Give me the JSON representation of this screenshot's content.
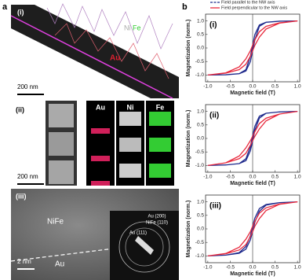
{
  "panel_labels": [
    "a",
    "b"
  ],
  "panel_a": {
    "i": {
      "label": "(i)",
      "ni": "Ni",
      "fe": "Fe",
      "au": "Au",
      "scale": "200 nm"
    },
    "ii": {
      "label": "(ii)",
      "maps": [
        "Au",
        "Ni",
        "Fe"
      ],
      "scale": "200 nm"
    },
    "iii": {
      "label": "(iii)",
      "nife": "NiFe",
      "au": "Au",
      "scale": "2 nm",
      "rings": [
        "Au (200)",
        "NiFe (110)",
        "Au (111)"
      ]
    }
  },
  "chart_data": [
    {
      "type": "line",
      "title": "(i)",
      "x_label": "Magnetic field (T)",
      "y_label": "Magnetization (norm.)",
      "x": [
        -1,
        -0.6,
        -0.3,
        -0.15,
        -0.05,
        0,
        0.05,
        0.15,
        0.3,
        0.6,
        1,
        0.6,
        0.3,
        0.15,
        0.05,
        0,
        -0.05,
        -0.15,
        -0.3,
        -0.6,
        -1
      ],
      "series": [
        {
          "name": "Field parallel to the NW axis",
          "color": "#1f2a8c",
          "values": [
            -1,
            -0.99,
            -0.95,
            -0.85,
            -0.5,
            -0.1,
            0.3,
            0.8,
            0.95,
            0.99,
            1,
            0.99,
            0.95,
            0.85,
            0.5,
            0.1,
            -0.3,
            -0.8,
            -0.95,
            -0.99,
            -1
          ]
        },
        {
          "name": "Field perpendicular to the NW axis",
          "color": "#e8283c",
          "values": [
            -1,
            -0.93,
            -0.8,
            -0.6,
            -0.3,
            -0.1,
            0.1,
            0.4,
            0.7,
            0.92,
            1,
            0.93,
            0.8,
            0.6,
            0.3,
            0.1,
            -0.1,
            -0.4,
            -0.7,
            -0.92,
            -1
          ]
        }
      ],
      "xlim": [
        -1.05,
        1.05
      ],
      "ylim": [
        -1.25,
        1.25
      ],
      "xticks": [
        {
          "value": -1,
          "label": "-1.0"
        },
        {
          "value": -0.5,
          "label": "-0.5"
        },
        {
          "value": 0,
          "label": "0.0"
        },
        {
          "value": 0.5,
          "label": "0.5"
        },
        {
          "value": 1,
          "label": "1.0"
        }
      ],
      "yticks": [
        {
          "value": -1,
          "label": "-1.0"
        },
        {
          "value": -0.5,
          "label": "-0.5"
        },
        {
          "value": 0,
          "label": "0.0"
        },
        {
          "value": 0.5,
          "label": "0.5"
        },
        {
          "value": 1,
          "label": "1.0"
        }
      ],
      "legend": "top"
    },
    {
      "type": "line",
      "title": "(ii)",
      "x_label": "Magnetic field (T)",
      "y_label": "Magnetization (norm.)",
      "x": [
        -1,
        -0.6,
        -0.3,
        -0.15,
        -0.05,
        0,
        0.05,
        0.15,
        0.3,
        0.6,
        1,
        0.6,
        0.3,
        0.15,
        0.05,
        0,
        -0.05,
        -0.15,
        -0.3,
        -0.6,
        -1
      ],
      "series": [
        {
          "color": "#1f2a8c",
          "values": [
            -1,
            -0.98,
            -0.93,
            -0.82,
            -0.45,
            -0.1,
            0.3,
            0.75,
            0.93,
            0.98,
            1,
            0.98,
            0.93,
            0.82,
            0.45,
            0.1,
            -0.3,
            -0.75,
            -0.93,
            -0.98,
            -1
          ]
        },
        {
          "color": "#e8283c",
          "values": [
            -1,
            -0.9,
            -0.75,
            -0.55,
            -0.25,
            -0.08,
            0.08,
            0.35,
            0.65,
            0.9,
            1,
            0.9,
            0.75,
            0.55,
            0.25,
            0.08,
            -0.08,
            -0.35,
            -0.65,
            -0.9,
            -1
          ]
        }
      ],
      "xlim": [
        -1.05,
        1.05
      ],
      "ylim": [
        -1.25,
        1.25
      ],
      "xticks": [
        {
          "value": -1,
          "label": "-1.0"
        },
        {
          "value": -0.5,
          "label": "-0.5"
        },
        {
          "value": 0,
          "label": "0.0"
        },
        {
          "value": 0.5,
          "label": "0.5"
        },
        {
          "value": 1,
          "label": "1.0"
        }
      ],
      "yticks": [
        {
          "value": -1,
          "label": "-1.0"
        },
        {
          "value": -0.5,
          "label": "-0.5"
        },
        {
          "value": 0,
          "label": "0.0"
        },
        {
          "value": 0.5,
          "label": "0.5"
        },
        {
          "value": 1,
          "label": "1.0"
        }
      ]
    },
    {
      "type": "line",
      "title": "(iii)",
      "x_label": "Magnetic field (T)",
      "y_label": "Magnetization (norm.)",
      "x": [
        -1,
        -0.6,
        -0.3,
        -0.15,
        -0.05,
        0,
        0.05,
        0.15,
        0.3,
        0.6,
        1,
        0.6,
        0.3,
        0.15,
        0.05,
        0,
        -0.05,
        -0.15,
        -0.3,
        -0.6,
        -1
      ],
      "series": [
        {
          "color": "#1f2a8c",
          "values": [
            -1,
            -0.97,
            -0.9,
            -0.75,
            -0.4,
            -0.1,
            0.25,
            0.65,
            0.88,
            0.97,
            1,
            0.97,
            0.9,
            0.75,
            0.4,
            0.1,
            -0.25,
            -0.65,
            -0.88,
            -0.97,
            -1
          ]
        },
        {
          "color": "#e8283c",
          "values": [
            -1,
            -0.92,
            -0.78,
            -0.58,
            -0.28,
            -0.1,
            0.1,
            0.38,
            0.68,
            0.91,
            1,
            0.92,
            0.78,
            0.58,
            0.28,
            0.1,
            -0.1,
            -0.38,
            -0.68,
            -0.91,
            -1
          ]
        }
      ],
      "xlim": [
        -1.05,
        1.05
      ],
      "ylim": [
        -1.25,
        1.25
      ],
      "xticks": [
        {
          "value": -1,
          "label": "-1.0"
        },
        {
          "value": -0.5,
          "label": "-0.5"
        },
        {
          "value": 0,
          "label": "0.0"
        },
        {
          "value": 0.5,
          "label": "0.5"
        },
        {
          "value": 1,
          "label": "1.0"
        }
      ],
      "yticks": [
        {
          "value": -1,
          "label": "-1.0"
        },
        {
          "value": -0.5,
          "label": "-0.5"
        },
        {
          "value": 0,
          "label": "0.0"
        },
        {
          "value": 0.5,
          "label": "0.5"
        },
        {
          "value": 1,
          "label": "1.0"
        }
      ]
    }
  ]
}
